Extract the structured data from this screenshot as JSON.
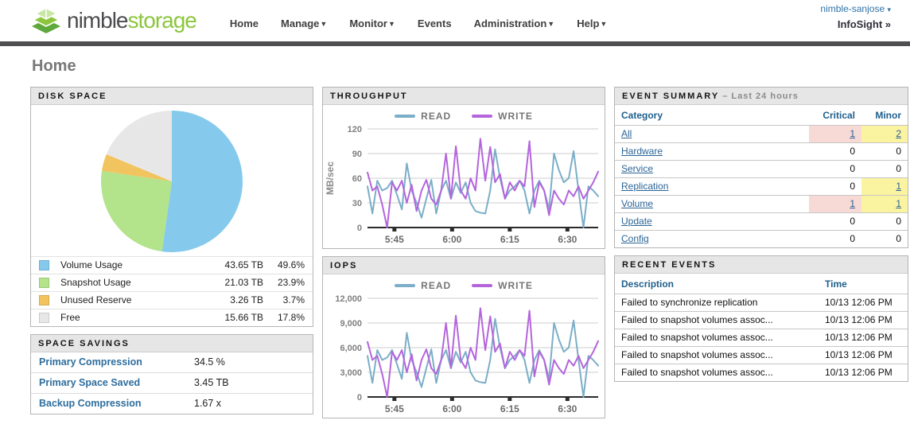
{
  "header": {
    "logo": {
      "text_dark": "nimble",
      "text_green": "storage"
    },
    "nav": [
      {
        "label": "Home",
        "caret": false
      },
      {
        "label": "Manage",
        "caret": true
      },
      {
        "label": "Monitor",
        "caret": true
      },
      {
        "label": "Events",
        "caret": false
      },
      {
        "label": "Administration",
        "caret": true
      },
      {
        "label": "Help",
        "caret": true
      }
    ],
    "account": "nimble-sanjose",
    "account_caret": "▾",
    "infosight": "InfoSight »"
  },
  "page_title": "Home",
  "disk_space": {
    "title": "DISK SPACE",
    "legend": [
      {
        "label": "Volume Usage",
        "value": "43.65 TB",
        "pct": "49.6%",
        "color": "#85C9EC"
      },
      {
        "label": "Snapshot Usage",
        "value": "21.03 TB",
        "pct": "23.9%",
        "color": "#B3E38B"
      },
      {
        "label": "Unused Reserve",
        "value": "3.26 TB",
        "pct": "3.7%",
        "color": "#F2C45F"
      },
      {
        "label": "Free",
        "value": "15.66 TB",
        "pct": "17.8%",
        "color": "#E7E7E7"
      }
    ]
  },
  "space_savings": {
    "title": "SPACE SAVINGS",
    "rows": [
      {
        "label": "Primary Compression",
        "value": "34.5 %"
      },
      {
        "label": "Primary Space Saved",
        "value": "3.45 TB"
      },
      {
        "label": "Backup Compression",
        "value": "1.67 x"
      }
    ]
  },
  "event_summary": {
    "title": "EVENT SUMMARY",
    "subtitle": " – Last 24 hours",
    "columns": [
      "Category",
      "Critical",
      "Minor"
    ],
    "colors": {
      "critical_bg": "#F7DAD5",
      "minor_bg": "#FAF3A0",
      "link": "#2A6496"
    },
    "rows": [
      {
        "category": "All",
        "critical": "1",
        "minor": "2",
        "critical_link": true,
        "minor_link": true,
        "critical_hl": true,
        "minor_hl": true
      },
      {
        "category": "Hardware",
        "critical": "0",
        "minor": "0",
        "critical_link": false,
        "minor_link": false,
        "critical_hl": false,
        "minor_hl": false
      },
      {
        "category": "Service",
        "critical": "0",
        "minor": "0",
        "critical_link": false,
        "minor_link": false,
        "critical_hl": false,
        "minor_hl": false
      },
      {
        "category": "Replication",
        "critical": "0",
        "minor": "1",
        "critical_link": false,
        "minor_link": true,
        "critical_hl": false,
        "minor_hl": true
      },
      {
        "category": "Volume",
        "critical": "1",
        "minor": "1",
        "critical_link": true,
        "minor_link": true,
        "critical_hl": true,
        "minor_hl": true
      },
      {
        "category": "Update",
        "critical": "0",
        "minor": "0",
        "critical_link": false,
        "minor_link": false,
        "critical_hl": false,
        "minor_hl": false
      },
      {
        "category": "Config",
        "critical": "0",
        "minor": "0",
        "critical_link": false,
        "minor_link": false,
        "critical_hl": false,
        "minor_hl": false
      }
    ]
  },
  "recent_events": {
    "title": "RECENT EVENTS",
    "columns": [
      "Description",
      "Time"
    ],
    "rows": [
      {
        "description": "Failed to synchronize replication",
        "time": "10/13 12:06 PM"
      },
      {
        "description": "Failed to snapshot volumes assoc...",
        "time": "10/13 12:06 PM"
      },
      {
        "description": "Failed to snapshot volumes assoc...",
        "time": "10/13 12:06 PM"
      },
      {
        "description": "Failed to snapshot volumes assoc...",
        "time": "10/13 12:06 PM"
      },
      {
        "description": "Failed to snapshot volumes assoc...",
        "time": "10/13 12:06 PM"
      }
    ]
  },
  "chart_data": [
    {
      "type": "pie",
      "title": "DISK SPACE",
      "labels": [
        "Volume Usage",
        "Snapshot Usage",
        "Unused Reserve",
        "Free"
      ],
      "values": [
        49.6,
        23.9,
        3.7,
        17.8
      ],
      "units": [
        "43.65 TB",
        "21.03 TB",
        "3.26 TB",
        "15.66 TB"
      ],
      "colors": [
        "#85C9EC",
        "#B3E38B",
        "#F2C45F",
        "#E7E7E7"
      ],
      "start_angle": "top",
      "direction": "clockwise",
      "legend_position": "below"
    },
    {
      "type": "line",
      "title": "THROUGHPUT",
      "ylabel": "MB/sec",
      "ylim": [
        0,
        120
      ],
      "yticks": [
        0,
        30,
        60,
        90,
        120
      ],
      "ytick_labels": [
        "0",
        "30",
        "60",
        "90",
        "120"
      ],
      "grid": true,
      "legend_position": "top",
      "x_range_minutes": [
        338,
        398
      ],
      "xticks": [
        {
          "minute": 345,
          "label": "5:45"
        },
        {
          "minute": 360,
          "label": "6:00"
        },
        {
          "minute": 375,
          "label": "6:15"
        },
        {
          "minute": 390,
          "label": "6:30"
        }
      ],
      "series": [
        {
          "name": "READ",
          "color": "#7BAEC8",
          "values": [
            50,
            17,
            57,
            45,
            48,
            57,
            40,
            22,
            78,
            45,
            30,
            12,
            35,
            58,
            17,
            45,
            57,
            35,
            55,
            42,
            55,
            30,
            20,
            18,
            17,
            45,
            95,
            60,
            35,
            45,
            50,
            57,
            45,
            17,
            45,
            57,
            45,
            22,
            90,
            70,
            55,
            60,
            93,
            45,
            0,
            50,
            45,
            38
          ]
        },
        {
          "name": "WRITE",
          "color": "#B465DC",
          "values": [
            67,
            45,
            50,
            28,
            0,
            55,
            45,
            57,
            30,
            52,
            20,
            45,
            58,
            35,
            28,
            45,
            90,
            35,
            99,
            45,
            35,
            60,
            45,
            108,
            57,
            98,
            55,
            65,
            35,
            55,
            45,
            57,
            50,
            105,
            25,
            55,
            45,
            15,
            45,
            35,
            28,
            45,
            38,
            50,
            35,
            45,
            55,
            68
          ]
        }
      ]
    },
    {
      "type": "line",
      "title": "IOPS",
      "ylabel": "",
      "ylim": [
        0,
        12000
      ],
      "yticks": [
        0,
        3000,
        6000,
        9000,
        12000
      ],
      "ytick_labels": [
        "0",
        "3,000",
        "6,000",
        "9,000",
        "12,000"
      ],
      "grid": true,
      "legend_position": "top",
      "x_range_minutes": [
        338,
        398
      ],
      "xticks": [
        {
          "minute": 345,
          "label": "5:45"
        },
        {
          "minute": 360,
          "label": "6:00"
        },
        {
          "minute": 375,
          "label": "6:15"
        },
        {
          "minute": 390,
          "label": "6:30"
        }
      ],
      "series": [
        {
          "name": "READ",
          "color": "#7BAEC8",
          "values": [
            5000,
            1700,
            5700,
            4500,
            4800,
            5700,
            4000,
            2200,
            7800,
            4500,
            3000,
            1200,
            3500,
            5800,
            1700,
            4500,
            5700,
            3500,
            5500,
            4200,
            5500,
            3000,
            2000,
            1800,
            1700,
            4500,
            9500,
            6000,
            3500,
            4500,
            5000,
            5700,
            4500,
            1700,
            4500,
            5700,
            4500,
            2200,
            9000,
            7000,
            5500,
            6000,
            9300,
            4500,
            0,
            5000,
            4500,
            3800
          ]
        },
        {
          "name": "WRITE",
          "color": "#B465DC",
          "values": [
            6700,
            4500,
            5000,
            2800,
            0,
            5500,
            4500,
            5700,
            3000,
            5200,
            2000,
            4500,
            5800,
            3500,
            2800,
            4500,
            9000,
            3500,
            9900,
            4500,
            3500,
            6000,
            4500,
            10800,
            5700,
            9800,
            5500,
            6500,
            3500,
            5500,
            4500,
            5700,
            5000,
            10500,
            2500,
            5500,
            4500,
            1500,
            4500,
            3500,
            2800,
            4500,
            3800,
            5000,
            3500,
            4500,
            5500,
            6800
          ]
        }
      ]
    }
  ]
}
